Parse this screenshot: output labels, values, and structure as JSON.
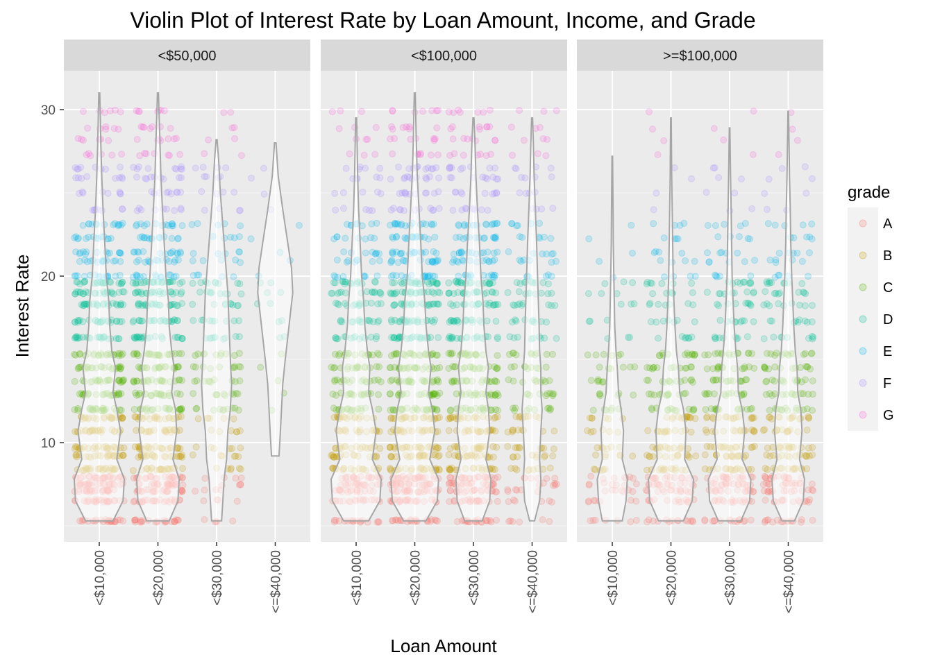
{
  "chart_data": {
    "type": "violin",
    "title": "Violin Plot of Interest Rate by Loan Amount, Income, and Grade",
    "xlabel": "Loan Amount",
    "ylabel": "Interest Rate",
    "ylim": [
      4.3,
      33.5
    ],
    "yticks": [
      10,
      20,
      30
    ],
    "categories": [
      "<$10,000",
      "<$20,000",
      "<$30,000",
      "<=$40,000"
    ],
    "facets": [
      "<$50,000",
      "<$100,000",
      ">=$100,000"
    ],
    "legend": {
      "title": "grade",
      "position": "right",
      "entries": [
        {
          "name": "A",
          "color": "#F8766D"
        },
        {
          "name": "B",
          "color": "#C49A00"
        },
        {
          "name": "C",
          "color": "#53B400"
        },
        {
          "name": "D",
          "color": "#00C094"
        },
        {
          "name": "E",
          "color": "#00B6EB"
        },
        {
          "name": "F",
          "color": "#A58AFF"
        },
        {
          "name": "G",
          "color": "#FB61D7"
        }
      ]
    },
    "grade_bands": [
      {
        "grade": "A",
        "rates": [
          5.3,
          6.5,
          7.1,
          7.5,
          7.9
        ]
      },
      {
        "grade": "B",
        "rates": [
          8.4,
          9.2,
          9.7,
          10.7,
          11.5
        ]
      },
      {
        "grade": "C",
        "rates": [
          12.0,
          12.9,
          13.7,
          14.5,
          15.3
        ]
      },
      {
        "grade": "D",
        "rates": [
          16.3,
          17.3,
          18.3,
          19.0,
          19.6
        ]
      },
      {
        "grade": "E",
        "rates": [
          20.0,
          20.9,
          21.4,
          22.3,
          23.1
        ]
      },
      {
        "grade": "F",
        "rates": [
          24.0,
          25.0,
          25.9,
          26.5
        ]
      },
      {
        "grade": "G",
        "rates": [
          27.3,
          28.2,
          28.9,
          29.9
        ]
      }
    ],
    "violins": [
      {
        "facet": "<$50,000",
        "category": "<$10,000",
        "min": 5.3,
        "max": 31.0,
        "profile": [
          [
            5.3,
            0.55
          ],
          [
            6.5,
            0.95
          ],
          [
            7.8,
            1.0
          ],
          [
            9.0,
            0.7
          ],
          [
            10.7,
            0.85
          ],
          [
            12.0,
            0.7
          ],
          [
            13.0,
            0.55
          ],
          [
            14.5,
            0.65
          ],
          [
            15.5,
            0.5
          ],
          [
            17.0,
            0.42
          ],
          [
            18.5,
            0.38
          ],
          [
            20.0,
            0.28
          ],
          [
            22.0,
            0.22
          ],
          [
            24.0,
            0.15
          ],
          [
            26.0,
            0.1
          ],
          [
            28.0,
            0.06
          ],
          [
            31.0,
            0.02
          ]
        ]
      },
      {
        "facet": "<$50,000",
        "category": "<$20,000",
        "min": 5.3,
        "max": 31.0,
        "profile": [
          [
            5.3,
            0.45
          ],
          [
            6.5,
            0.8
          ],
          [
            7.8,
            0.85
          ],
          [
            9.0,
            0.6
          ],
          [
            10.7,
            0.75
          ],
          [
            12.0,
            0.7
          ],
          [
            13.0,
            0.55
          ],
          [
            14.5,
            0.65
          ],
          [
            15.5,
            0.55
          ],
          [
            17.0,
            0.45
          ],
          [
            18.5,
            0.42
          ],
          [
            20.0,
            0.32
          ],
          [
            22.0,
            0.25
          ],
          [
            24.0,
            0.18
          ],
          [
            26.0,
            0.12
          ],
          [
            28.0,
            0.08
          ],
          [
            31.0,
            0.02
          ]
        ]
      },
      {
        "facet": "<$50,000",
        "category": "<$30,000",
        "min": 5.3,
        "max": 28.2,
        "profile": [
          [
            5.3,
            0.2
          ],
          [
            6.5,
            0.25
          ],
          [
            7.8,
            0.3
          ],
          [
            9.0,
            0.4
          ],
          [
            10.7,
            0.45
          ],
          [
            12.0,
            0.55
          ],
          [
            13.5,
            0.6
          ],
          [
            15.0,
            0.55
          ],
          [
            17.0,
            0.5
          ],
          [
            19.0,
            0.45
          ],
          [
            21.0,
            0.35
          ],
          [
            23.0,
            0.25
          ],
          [
            25.0,
            0.15
          ],
          [
            27.0,
            0.08
          ],
          [
            28.2,
            0.02
          ]
        ]
      },
      {
        "facet": "<$50,000",
        "category": "<=$40,000",
        "min": 9.2,
        "max": 28.0,
        "profile": [
          [
            9.2,
            0.15
          ],
          [
            10.5,
            0.2
          ],
          [
            12.0,
            0.25
          ],
          [
            13.5,
            0.3
          ],
          [
            15.0,
            0.4
          ],
          [
            17.0,
            0.55
          ],
          [
            19.0,
            0.7
          ],
          [
            20.5,
            0.65
          ],
          [
            22.0,
            0.5
          ],
          [
            24.0,
            0.3
          ],
          [
            26.0,
            0.12
          ],
          [
            28.0,
            0.03
          ]
        ]
      },
      {
        "facet": "<$100,000",
        "category": "<$10,000",
        "min": 5.3,
        "max": 29.5,
        "profile": [
          [
            5.3,
            0.5
          ],
          [
            6.5,
            0.95
          ],
          [
            7.8,
            1.0
          ],
          [
            9.0,
            0.65
          ],
          [
            10.7,
            0.8
          ],
          [
            12.0,
            0.65
          ],
          [
            13.0,
            0.5
          ],
          [
            14.5,
            0.55
          ],
          [
            15.5,
            0.45
          ],
          [
            17.0,
            0.35
          ],
          [
            18.5,
            0.3
          ],
          [
            20.0,
            0.22
          ],
          [
            22.0,
            0.16
          ],
          [
            24.0,
            0.1
          ],
          [
            26.0,
            0.06
          ],
          [
            29.5,
            0.02
          ]
        ]
      },
      {
        "facet": "<$100,000",
        "category": "<$20,000",
        "min": 5.3,
        "max": 31.0,
        "profile": [
          [
            5.3,
            0.45
          ],
          [
            6.5,
            0.9
          ],
          [
            7.8,
            0.95
          ],
          [
            9.0,
            0.6
          ],
          [
            10.7,
            0.8
          ],
          [
            12.0,
            0.7
          ],
          [
            13.0,
            0.55
          ],
          [
            14.5,
            0.65
          ],
          [
            15.5,
            0.55
          ],
          [
            17.0,
            0.45
          ],
          [
            18.5,
            0.4
          ],
          [
            20.0,
            0.3
          ],
          [
            22.0,
            0.24
          ],
          [
            24.0,
            0.17
          ],
          [
            26.0,
            0.1
          ],
          [
            28.0,
            0.06
          ],
          [
            31.0,
            0.02
          ]
        ]
      },
      {
        "facet": "<$100,000",
        "category": "<$30,000",
        "min": 5.3,
        "max": 29.5,
        "profile": [
          [
            5.3,
            0.35
          ],
          [
            6.5,
            0.65
          ],
          [
            7.8,
            0.7
          ],
          [
            9.0,
            0.5
          ],
          [
            10.7,
            0.65
          ],
          [
            12.0,
            0.6
          ],
          [
            13.0,
            0.5
          ],
          [
            14.5,
            0.6
          ],
          [
            15.5,
            0.5
          ],
          [
            17.0,
            0.42
          ],
          [
            18.5,
            0.38
          ],
          [
            20.0,
            0.3
          ],
          [
            22.0,
            0.24
          ],
          [
            24.0,
            0.16
          ],
          [
            26.0,
            0.1
          ],
          [
            28.0,
            0.06
          ],
          [
            29.5,
            0.02
          ]
        ]
      },
      {
        "facet": "<$100,000",
        "category": "<=$40,000",
        "min": 5.3,
        "max": 29.5,
        "profile": [
          [
            5.3,
            0.1
          ],
          [
            6.5,
            0.3
          ],
          [
            7.8,
            0.35
          ],
          [
            9.0,
            0.3
          ],
          [
            10.7,
            0.35
          ],
          [
            12.0,
            0.4
          ],
          [
            13.0,
            0.35
          ],
          [
            14.5,
            0.35
          ],
          [
            15.5,
            0.3
          ],
          [
            17.0,
            0.28
          ],
          [
            18.5,
            0.25
          ],
          [
            20.0,
            0.22
          ],
          [
            22.0,
            0.18
          ],
          [
            24.0,
            0.13
          ],
          [
            26.0,
            0.08
          ],
          [
            28.0,
            0.05
          ],
          [
            29.5,
            0.02
          ]
        ]
      },
      {
        "facet": ">=$100,000",
        "category": "<$10,000",
        "min": 5.3,
        "max": 27.2,
        "profile": [
          [
            5.3,
            0.4
          ],
          [
            6.5,
            0.55
          ],
          [
            7.8,
            0.6
          ],
          [
            9.0,
            0.4
          ],
          [
            10.7,
            0.45
          ],
          [
            12.0,
            0.35
          ],
          [
            13.0,
            0.25
          ],
          [
            14.5,
            0.2
          ],
          [
            15.5,
            0.15
          ],
          [
            17.0,
            0.1
          ],
          [
            18.5,
            0.08
          ],
          [
            20.0,
            0.06
          ],
          [
            22.0,
            0.04
          ],
          [
            24.0,
            0.03
          ],
          [
            27.2,
            0.01
          ]
        ]
      },
      {
        "facet": ">=$100,000",
        "category": "<$20,000",
        "min": 5.3,
        "max": 29.5,
        "profile": [
          [
            5.3,
            0.5
          ],
          [
            6.5,
            0.85
          ],
          [
            7.8,
            0.9
          ],
          [
            9.0,
            0.55
          ],
          [
            10.7,
            0.6
          ],
          [
            12.0,
            0.5
          ],
          [
            13.0,
            0.35
          ],
          [
            14.5,
            0.3
          ],
          [
            15.5,
            0.22
          ],
          [
            17.0,
            0.16
          ],
          [
            18.5,
            0.12
          ],
          [
            20.0,
            0.09
          ],
          [
            22.0,
            0.07
          ],
          [
            24.0,
            0.05
          ],
          [
            26.0,
            0.03
          ],
          [
            29.5,
            0.01
          ]
        ]
      },
      {
        "facet": ">=$100,000",
        "category": "<$30,000",
        "min": 5.3,
        "max": 28.9,
        "profile": [
          [
            5.3,
            0.45
          ],
          [
            6.5,
            0.8
          ],
          [
            7.8,
            0.85
          ],
          [
            9.0,
            0.5
          ],
          [
            10.7,
            0.6
          ],
          [
            12.0,
            0.5
          ],
          [
            13.0,
            0.35
          ],
          [
            14.5,
            0.32
          ],
          [
            15.5,
            0.25
          ],
          [
            17.0,
            0.18
          ],
          [
            18.5,
            0.14
          ],
          [
            20.0,
            0.1
          ],
          [
            22.0,
            0.08
          ],
          [
            24.0,
            0.06
          ],
          [
            26.0,
            0.04
          ],
          [
            28.9,
            0.01
          ]
        ]
      },
      {
        "facet": ">=$100,000",
        "category": "<=$40,000",
        "min": 5.3,
        "max": 29.9,
        "profile": [
          [
            5.3,
            0.25
          ],
          [
            6.5,
            0.6
          ],
          [
            7.8,
            0.65
          ],
          [
            9.0,
            0.45
          ],
          [
            10.7,
            0.55
          ],
          [
            12.0,
            0.5
          ],
          [
            13.0,
            0.38
          ],
          [
            14.5,
            0.35
          ],
          [
            15.5,
            0.28
          ],
          [
            17.0,
            0.22
          ],
          [
            18.5,
            0.18
          ],
          [
            20.0,
            0.14
          ],
          [
            22.0,
            0.1
          ],
          [
            24.0,
            0.08
          ],
          [
            26.0,
            0.05
          ],
          [
            28.0,
            0.03
          ],
          [
            29.9,
            0.01
          ]
        ]
      }
    ],
    "point_density": {
      "<$50,000": [
        1.0,
        0.95,
        0.45,
        0.08
      ],
      "<$100,000": [
        0.7,
        1.0,
        0.85,
        0.45
      ],
      ">=$100,000": [
        0.3,
        0.6,
        0.65,
        0.6
      ]
    },
    "grade_mix": {
      "<$50,000": [
        [
          1.0,
          1.0,
          1.0,
          1.0,
          0.6,
          0.35,
          0.25
        ],
        [
          1.0,
          1.0,
          1.0,
          1.0,
          0.6,
          0.4,
          0.3
        ],
        [
          0.35,
          0.6,
          0.9,
          0.8,
          0.5,
          0.35,
          0.2
        ],
        [
          0.1,
          0.2,
          0.6,
          0.8,
          0.7,
          0.3,
          0.1
        ]
      ],
      "<$100,000": [
        [
          1.0,
          1.0,
          1.0,
          0.9,
          0.5,
          0.3,
          0.2
        ],
        [
          1.0,
          1.0,
          1.0,
          1.0,
          0.7,
          0.45,
          0.3
        ],
        [
          1.0,
          1.0,
          1.0,
          1.0,
          0.7,
          0.45,
          0.35
        ],
        [
          0.6,
          0.8,
          0.9,
          0.8,
          0.6,
          0.4,
          0.3
        ]
      ],
      ">=$100,000": [
        [
          1.0,
          0.9,
          0.8,
          0.4,
          0.15,
          0.06,
          0.03
        ],
        [
          1.0,
          1.0,
          0.9,
          0.5,
          0.25,
          0.1,
          0.06
        ],
        [
          1.0,
          1.0,
          0.9,
          0.55,
          0.3,
          0.12,
          0.07
        ],
        [
          1.0,
          1.0,
          0.95,
          0.6,
          0.35,
          0.15,
          0.08
        ]
      ]
    }
  }
}
